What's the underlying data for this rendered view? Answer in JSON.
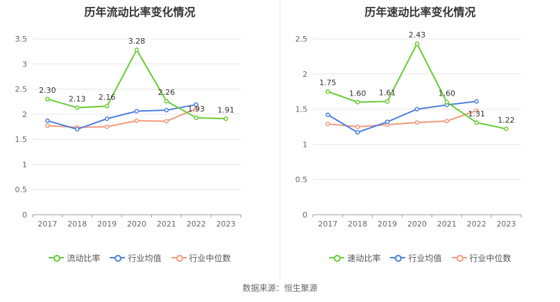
{
  "colors": {
    "current_ratio": "#66cc33",
    "industry_avg": "#4a7fe0",
    "industry_median": "#f4977a",
    "grid": "#e6e6e6",
    "axis": "#999999"
  },
  "chart_data": [
    {
      "type": "line",
      "title": "历年流动比率变化情况",
      "categories": [
        "2017",
        "2018",
        "2019",
        "2020",
        "2021",
        "2022",
        "2023"
      ],
      "ylim": [
        0,
        3.5
      ],
      "yticks": [
        "0",
        "0.5",
        "1",
        "1.5",
        "2",
        "2.5",
        "3",
        "3.5"
      ],
      "grid": true,
      "legend_position": "bottom",
      "series": [
        {
          "name": "流动比率",
          "values": [
            2.3,
            2.13,
            2.16,
            3.28,
            2.26,
            1.93,
            1.91
          ],
          "labels": [
            "2.30",
            "2.13",
            "2.16",
            "3.28",
            "2.26",
            "1.93",
            "1.91"
          ]
        },
        {
          "name": "行业均值",
          "values": [
            1.87,
            1.7,
            1.91,
            2.06,
            2.08,
            2.19,
            null
          ]
        },
        {
          "name": "行业中位数",
          "values": [
            1.77,
            1.74,
            1.75,
            1.87,
            1.86,
            2.11,
            null
          ]
        }
      ]
    },
    {
      "type": "line",
      "title": "历年速动比率变化情况",
      "categories": [
        "2017",
        "2018",
        "2019",
        "2020",
        "2021",
        "2022",
        "2023"
      ],
      "ylim": [
        0,
        2.5
      ],
      "yticks": [
        "0",
        "0.5",
        "1",
        "1.5",
        "2",
        "2.5"
      ],
      "grid": true,
      "legend_position": "bottom",
      "series": [
        {
          "name": "速动比率",
          "values": [
            1.75,
            1.6,
            1.61,
            2.43,
            1.6,
            1.31,
            1.22
          ],
          "labels": [
            "1.75",
            "1.60",
            "1.61",
            "2.43",
            "1.60",
            "1.31",
            "1.22"
          ]
        },
        {
          "name": "行业均值",
          "values": [
            1.42,
            1.17,
            1.32,
            1.5,
            1.56,
            1.61,
            null
          ]
        },
        {
          "name": "行业中位数",
          "values": [
            1.29,
            1.25,
            1.28,
            1.31,
            1.33,
            1.48,
            null
          ]
        }
      ]
    }
  ],
  "source": "数据来源：恒生聚源"
}
